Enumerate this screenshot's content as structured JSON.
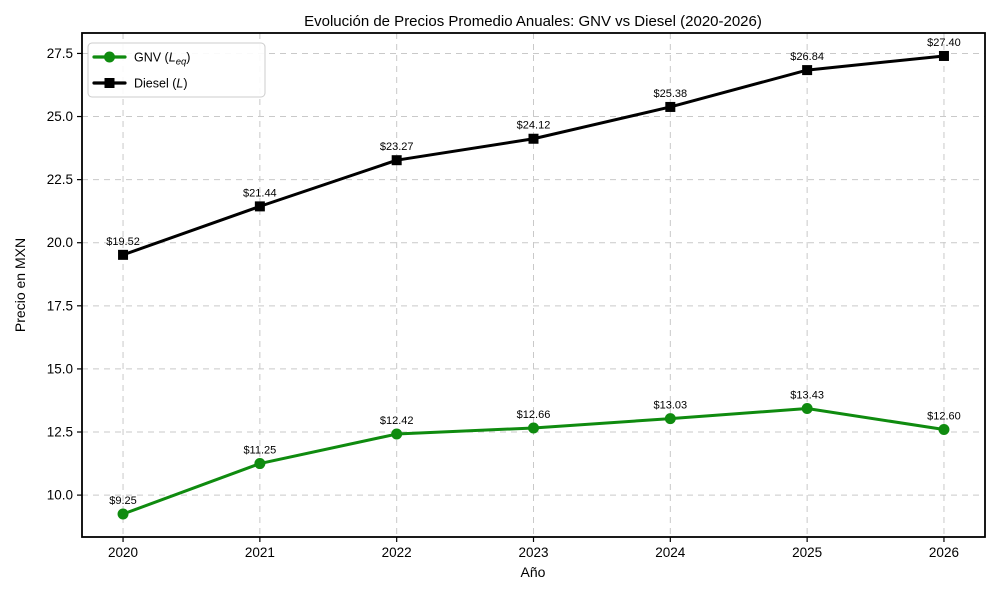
{
  "chart_data": {
    "type": "line",
    "title": "Evolución de Precios Promedio Anuales: GNV vs Diesel (2020-2026)",
    "xlabel": "Año",
    "ylabel": "Precio en MXN",
    "x": [
      2020,
      2021,
      2022,
      2023,
      2024,
      2025,
      2026
    ],
    "xtick_labels": [
      "2020",
      "2021",
      "2022",
      "2023",
      "2024",
      "2025",
      "2026"
    ],
    "yticks": [
      10.0,
      12.5,
      15.0,
      17.5,
      20.0,
      22.5,
      25.0,
      27.5
    ],
    "ytick_labels": [
      "10.0",
      "12.5",
      "15.0",
      "17.5",
      "20.0",
      "22.5",
      "25.0",
      "27.5"
    ],
    "xlim": [
      2019.7,
      2026.3
    ],
    "ylim": [
      8.34,
      28.31
    ],
    "grid": true,
    "grid_color": "#c9c9c9",
    "legend_position": "upper-left",
    "series": [
      {
        "name": "GNV (L_eq)",
        "legend_parts": {
          "prefix": "GNV (",
          "symbol": "L",
          "subscript": "eq",
          "suffix": ")"
        },
        "color": "#0f8b0f",
        "marker": "circle",
        "values": [
          9.25,
          11.25,
          12.42,
          12.66,
          13.03,
          13.43,
          12.6
        ],
        "labels": [
          "$9.25",
          "$11.25",
          "$12.42",
          "$12.66",
          "$13.03",
          "$13.43",
          "$12.60"
        ]
      },
      {
        "name": "Diesel (L)",
        "legend_parts": {
          "prefix": "Diesel (",
          "symbol": "L",
          "subscript": "",
          "suffix": ")"
        },
        "color": "#000000",
        "marker": "square",
        "values": [
          19.52,
          21.44,
          23.27,
          24.12,
          25.38,
          26.84,
          27.4
        ],
        "labels": [
          "$19.52",
          "$21.44",
          "$23.27",
          "$24.12",
          "$25.38",
          "$26.84",
          "$27.40"
        ]
      }
    ]
  }
}
